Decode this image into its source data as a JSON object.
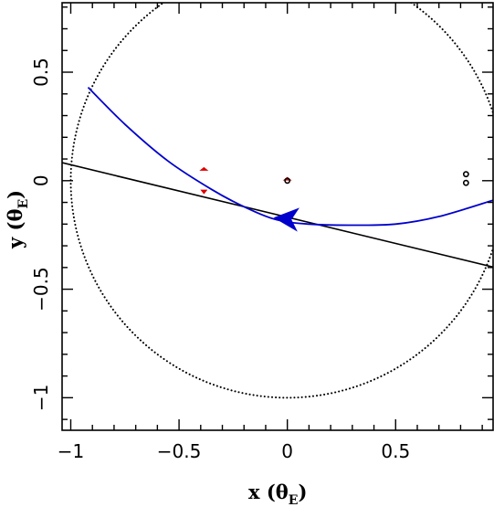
{
  "chart_data": {
    "type": "line",
    "xlabel": "x (θ_E)",
    "ylabel": "y (θ_E)",
    "xlabel_main": "x (θ",
    "xlabel_sub": "E",
    "xlabel_close": ")",
    "ylabel_main": "y (θ",
    "ylabel_sub": "E",
    "ylabel_close": ")",
    "xlim": [
      -1.04,
      0.95
    ],
    "ylim": [
      -1.15,
      0.82
    ],
    "x_ticks": [
      -1,
      -0.5,
      0,
      0.5
    ],
    "x_tick_labels": [
      "−1",
      "−0.5",
      "0",
      "0.5"
    ],
    "y_ticks": [
      -1,
      -0.5,
      0,
      0.5
    ],
    "y_tick_labels": [
      "−1",
      "−0.5",
      "0",
      "0.5"
    ],
    "grid": false,
    "einstein_ring": {
      "center": [
        0,
        0
      ],
      "radius": 1.0,
      "style": "dotted",
      "color": "#000000"
    },
    "binary_axis_line": {
      "x": [
        -1.04,
        0.95
      ],
      "y": [
        0.083,
        -0.398
      ],
      "color": "#000000"
    },
    "source_trajectory": {
      "color": "#0000cc",
      "x": [
        -0.92,
        -0.75,
        -0.55,
        -0.35,
        -0.2,
        -0.05,
        0.1,
        0.3,
        0.5,
        0.7,
        0.95
      ],
      "y": [
        0.43,
        0.26,
        0.09,
        -0.04,
        -0.12,
        -0.18,
        -0.2,
        -0.205,
        -0.2,
        -0.165,
        -0.09
      ],
      "arrow": {
        "x": 0.0,
        "y": -0.175
      }
    },
    "caustics": {
      "color": "#dd0000",
      "marks": [
        {
          "x": -0.385,
          "y": 0.05
        },
        {
          "x": -0.385,
          "y": -0.05
        },
        {
          "x": 0.0,
          "y": 0.005
        }
      ]
    },
    "lens_components": {
      "color": "#000000",
      "points": [
        {
          "x": 0.0,
          "y": 0.0
        },
        {
          "x": 0.825,
          "y": 0.03
        },
        {
          "x": 0.825,
          "y": -0.01
        }
      ]
    }
  }
}
